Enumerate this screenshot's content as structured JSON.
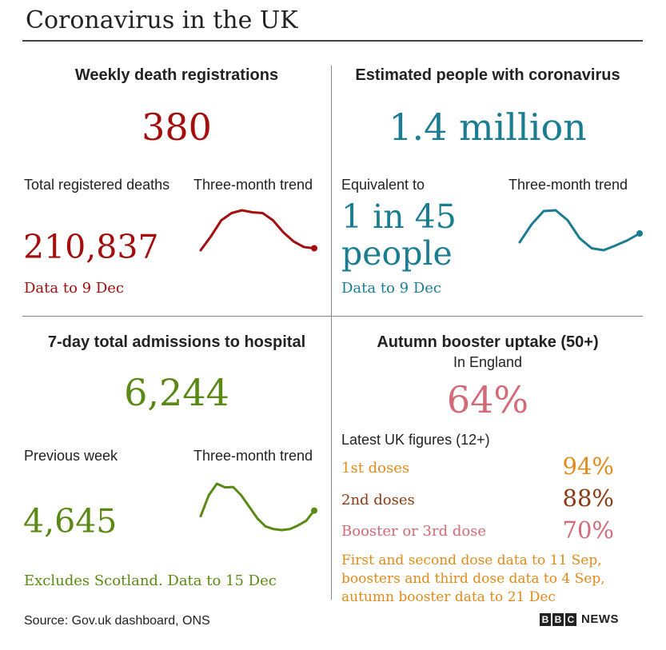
{
  "header": {
    "title": "Coronavirus in the UK"
  },
  "deaths": {
    "heading": "Weekly death registrations",
    "weekly_value": "380",
    "total_label": "Total registered deaths",
    "trend_label": "Three-month trend",
    "total_value": "210,837",
    "note": "Data to 9 Dec",
    "color": "#a50e0e",
    "trend": [
      0.0,
      0.35,
      0.75,
      0.93,
      1.0,
      0.95,
      0.93,
      0.75,
      0.45,
      0.22,
      0.08,
      0.05
    ]
  },
  "infections": {
    "heading": "Estimated people with coronavirus",
    "value": "1.4 million",
    "equivalent_label": "Equivalent to",
    "trend_label": "Three-month trend",
    "equivalent_line1": "1 in 45",
    "equivalent_line2": "people",
    "note": "Data to 9 Dec",
    "color": "#1b7d92",
    "trend": [
      0.2,
      0.65,
      0.98,
      1.0,
      0.75,
      0.3,
      0.05,
      0.0,
      0.12,
      0.25,
      0.42
    ]
  },
  "hospital": {
    "heading": "7-day total admissions to hospital",
    "value": "6,244",
    "previous_label": "Previous week",
    "trend_label": "Three-month trend",
    "previous_value": "4,645",
    "note": "Excludes Scotland. Data to 15 Dec",
    "color": "#5a8a15",
    "trend": [
      0.3,
      0.75,
      1.0,
      0.92,
      0.93,
      0.75,
      0.5,
      0.25,
      0.08,
      0.02,
      0.0,
      0.02,
      0.1,
      0.2,
      0.42
    ]
  },
  "booster": {
    "heading": "Autumn booster uptake (50+)",
    "subheading": "In England",
    "value": "64%",
    "latest_label": "Latest UK figures (12+)",
    "rows": [
      {
        "label": "1st doses",
        "value": "94%",
        "color": "#e08b1c"
      },
      {
        "label": "2nd doses",
        "value": "88%",
        "color": "#8b3a14"
      },
      {
        "label": "Booster or 3rd dose",
        "value": "70%",
        "color": "#d26a78"
      }
    ],
    "note_lines": [
      "First and second dose data to 11 Sep,",
      "boosters and third dose data to 4 Sep,",
      "autumn booster data to 21 Dec"
    ],
    "note_color": "#e08b1c"
  },
  "footer": {
    "source": "Source: Gov.uk dashboard, ONS",
    "logo_letters": [
      "B",
      "B",
      "C"
    ],
    "logo_word": "NEWS"
  }
}
